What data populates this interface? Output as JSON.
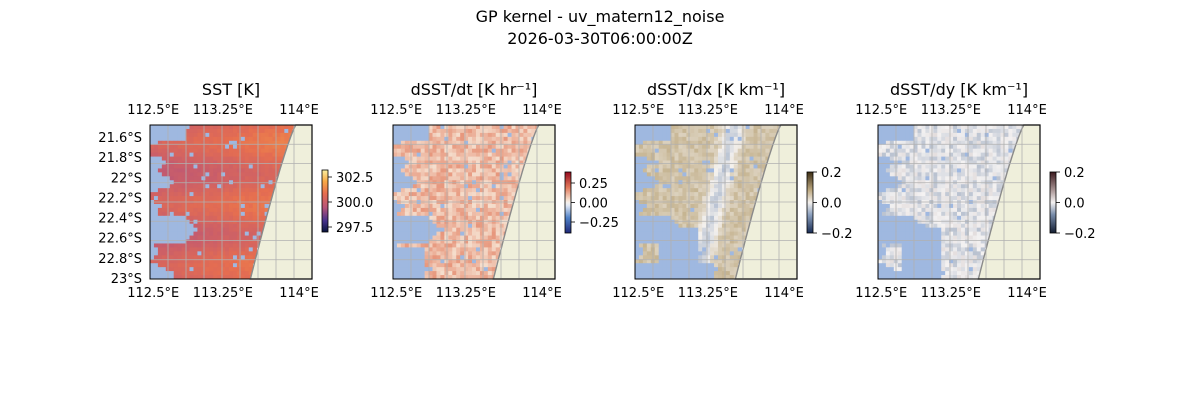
{
  "figure": {
    "title_line1": "GP kernel - uv_matern12_noise",
    "title_line2": "2026-03-30T06:00:00Z"
  },
  "colors": {
    "land": "#efefdb",
    "coast": "#8a8a8a",
    "grid": "#b0b0b0",
    "mask": "#9fb8e0"
  },
  "chart_data": [
    {
      "type": "heatmap",
      "title": "SST [K]",
      "x_tick_labels": [
        "112.5°E",
        "113.25°E",
        "114°E"
      ],
      "y_tick_labels": [
        "21.6°S",
        "21.8°S",
        "22°S",
        "22.2°S",
        "22.4°S",
        "22.6°S",
        "22.8°S",
        "23°S"
      ],
      "show_y_ticks": true,
      "colorbar": {
        "ticks": [
          "302.5",
          "300.0",
          "297.5"
        ],
        "range": [
          297.0,
          303.2
        ],
        "colormap": "thermal"
      },
      "value_range": [
        299.3,
        301.6
      ],
      "grid": true
    },
    {
      "type": "heatmap",
      "title": "dSST/dt [K hr⁻¹]",
      "x_tick_labels": [
        "112.5°E",
        "113.25°E",
        "114°E"
      ],
      "y_tick_labels": [],
      "show_y_ticks": false,
      "colorbar": {
        "ticks": [
          "0.25",
          "0.00",
          "−0.25"
        ],
        "range": [
          -0.4,
          0.4
        ],
        "colormap": "balance"
      },
      "value_range": [
        -0.05,
        0.4
      ],
      "grid": true
    },
    {
      "type": "heatmap",
      "title": "dSST/dx [K km⁻¹]",
      "x_tick_labels": [
        "112.5°E",
        "113.25°E",
        "114°E"
      ],
      "y_tick_labels": [],
      "show_y_ticks": false,
      "colorbar": {
        "ticks": [
          "0.2",
          "0.0",
          "−0.2"
        ],
        "range": [
          -0.2,
          0.2
        ],
        "colormap": "diff"
      },
      "value_range": [
        -0.05,
        0.12
      ],
      "grid": true
    },
    {
      "type": "heatmap",
      "title": "dSST/dy [K km⁻¹]",
      "x_tick_labels": [
        "112.5°E",
        "113.25°E",
        "114°E"
      ],
      "y_tick_labels": [],
      "show_y_ticks": false,
      "colorbar": {
        "ticks": [
          "0.2",
          "0.0",
          "−0.2"
        ],
        "range": [
          -0.2,
          0.2
        ],
        "colormap": "curl"
      },
      "value_range": [
        -0.08,
        0.06
      ],
      "grid": true
    }
  ]
}
